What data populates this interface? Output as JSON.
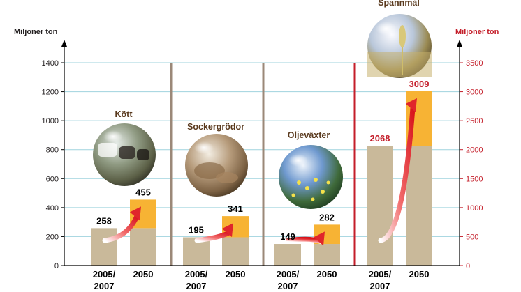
{
  "chart_data": {
    "type": "bar",
    "title": "",
    "left_axis": {
      "label": "Miljoner ton",
      "ylim": [
        0,
        1400
      ],
      "ticks": [
        0,
        200,
        400,
        600,
        800,
        1000,
        1200,
        1400
      ]
    },
    "right_axis": {
      "label": "Miljoner ton",
      "ylim": [
        0,
        3500
      ],
      "ticks": [
        0,
        500,
        1000,
        1500,
        2000,
        2500,
        3000,
        3500
      ]
    },
    "period_labels": [
      "2005/\n2007",
      "2050"
    ],
    "groups": [
      {
        "name": "Kött",
        "axis": "left",
        "values": [
          258,
          455
        ],
        "value_labels": [
          "258",
          "455"
        ]
      },
      {
        "name": "Sockergrödor",
        "axis": "left",
        "values": [
          195,
          341
        ],
        "value_labels": [
          "195",
          "341"
        ]
      },
      {
        "name": "Oljeväxter",
        "axis": "left",
        "values": [
          149,
          282
        ],
        "value_labels": [
          "149",
          "282"
        ]
      },
      {
        "name": "Spannmål",
        "axis": "right",
        "values": [
          2068,
          3009
        ],
        "value_labels": [
          "2068",
          "3009"
        ]
      }
    ],
    "colors": {
      "base_bar": "#c9b99a",
      "increase_bar": "#f7b334",
      "arrow": "#e0262b",
      "left_axis_text": "#231f20",
      "right_axis_text": "#c41e2a",
      "gridline": "#9fd3de",
      "group_separator": "#9b8878",
      "right_axis_separator": "#c41e2a",
      "left_labels": "#000000",
      "spannmal_labels": "#c41e2a",
      "category_titles": "#5a3a1e"
    }
  }
}
